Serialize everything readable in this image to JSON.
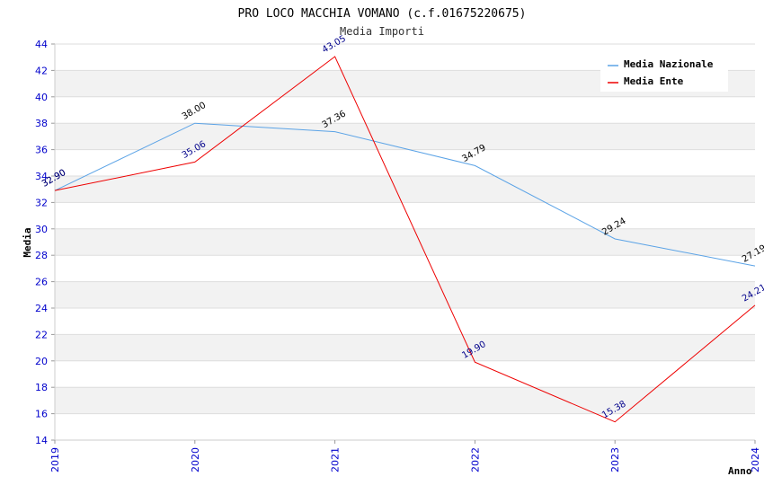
{
  "chart_data": {
    "type": "line",
    "title": "PRO LOCO MACCHIA VOMANO (c.f.01675220675)",
    "subtitle": "Media Importi",
    "xlabel": "Anno",
    "ylabel": "Media",
    "categories": [
      "2019",
      "2020",
      "2021",
      "2022",
      "2023",
      "2024"
    ],
    "ylim": [
      14,
      44
    ],
    "yticks": [
      14,
      16,
      18,
      20,
      22,
      24,
      26,
      28,
      30,
      32,
      34,
      36,
      38,
      40,
      42,
      44
    ],
    "grid": true,
    "legend_position": "top-right",
    "series": [
      {
        "name": "Media Nazionale",
        "color": "#5ba3e6",
        "values": [
          32.9,
          38.0,
          37.36,
          34.79,
          29.24,
          27.19
        ],
        "labels": [
          "32.90",
          "38.00",
          "37.36",
          "34.79",
          "29.24",
          "27.19"
        ]
      },
      {
        "name": "Media Ente",
        "color": "#ee0000",
        "values": [
          32.9,
          35.06,
          43.05,
          19.9,
          15.38,
          24.21
        ],
        "labels": [
          "32.90",
          "35.06",
          "43.05",
          "19.90",
          "15.38",
          "24.21"
        ]
      }
    ]
  }
}
